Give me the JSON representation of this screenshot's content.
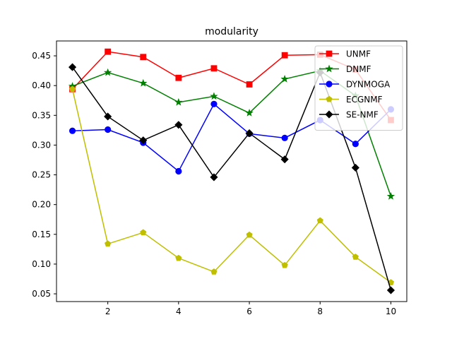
{
  "chart_data": {
    "type": "line",
    "title": "modularity",
    "xlabel": "",
    "ylabel": "",
    "x": [
      1,
      2,
      3,
      4,
      5,
      6,
      7,
      8,
      9,
      10
    ],
    "xlim": [
      0.55,
      10.45
    ],
    "ylim": [
      0.037,
      0.475
    ],
    "xticks": [
      2,
      4,
      6,
      8,
      10
    ],
    "yticks": [
      0.05,
      0.1,
      0.15,
      0.2,
      0.25,
      0.3,
      0.35,
      0.4,
      0.45
    ],
    "ytick_labels": [
      "0.05",
      "0.10",
      "0.15",
      "0.20",
      "0.25",
      "0.30",
      "0.35",
      "0.40",
      "0.45"
    ],
    "grid": false,
    "legend_position": "top-right",
    "series": [
      {
        "name": "UNMF",
        "color": "#ff0000",
        "marker": "square",
        "values": [
          0.394,
          0.457,
          0.448,
          0.413,
          0.429,
          0.402,
          0.451,
          0.452,
          0.427,
          0.342
        ]
      },
      {
        "name": "DNMF",
        "color": "#008000",
        "marker": "star",
        "values": [
          0.399,
          0.422,
          0.404,
          0.372,
          0.382,
          0.354,
          0.411,
          0.425,
          0.383,
          0.214
        ]
      },
      {
        "name": "DYNMOGA",
        "color": "#0000ff",
        "marker": "circle",
        "values": [
          0.324,
          0.326,
          0.304,
          0.256,
          0.369,
          0.319,
          0.312,
          0.342,
          0.302,
          0.36
        ]
      },
      {
        "name": "ECGNMF",
        "color": "#bfbf00",
        "marker": "pentagon",
        "values": [
          0.394,
          0.134,
          0.153,
          0.11,
          0.087,
          0.149,
          0.098,
          0.173,
          0.112,
          0.069
        ]
      },
      {
        "name": "SE-NMF",
        "color": "#000000",
        "marker": "diamond",
        "values": [
          0.431,
          0.348,
          0.308,
          0.334,
          0.246,
          0.32,
          0.276,
          0.422,
          0.262,
          0.056
        ]
      }
    ]
  }
}
